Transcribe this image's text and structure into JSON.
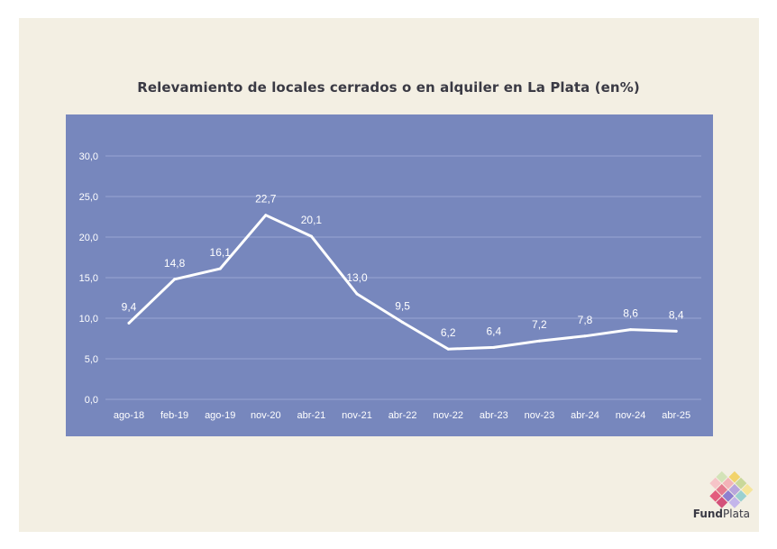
{
  "chart_data": {
    "type": "line",
    "title": "Relevamiento de locales cerrados o en alquiler en La Plata (en%)",
    "categories": [
      "ago-18",
      "feb-19",
      "ago-19",
      "nov-20",
      "abr-21",
      "nov-21",
      "abr-22",
      "nov-22",
      "abr-23",
      "nov-23",
      "abr-24",
      "nov-24",
      "abr-25"
    ],
    "series": [
      {
        "values": [
          9.4,
          14.8,
          16.1,
          22.7,
          20.1,
          13.0,
          9.5,
          6.2,
          6.4,
          7.2,
          7.8,
          8.6,
          8.4
        ]
      }
    ],
    "data_labels": [
      "9,4",
      "14,8",
      "16,1",
      "22,7",
      "20,1",
      "13,0",
      "9,5",
      "6,2",
      "6,4",
      "7,2",
      "7,8",
      "8,6",
      "8,4"
    ],
    "yticks": [
      0,
      5,
      10,
      15,
      20,
      25,
      30
    ],
    "ytick_labels": [
      "0,0",
      "5,0",
      "10,0",
      "15,0",
      "20,0",
      "25,0",
      "30,0"
    ],
    "ylim": [
      0,
      30
    ],
    "grid": true,
    "xlabel": "",
    "ylabel": "",
    "colors": {
      "background": "#7787bd",
      "line": "#ffffff",
      "gridline": "#9aa6d2",
      "page": "#f3efe3",
      "title": "#3a3a44"
    }
  },
  "brand": {
    "name_bold": "Fund",
    "name_regular": "Plata"
  }
}
